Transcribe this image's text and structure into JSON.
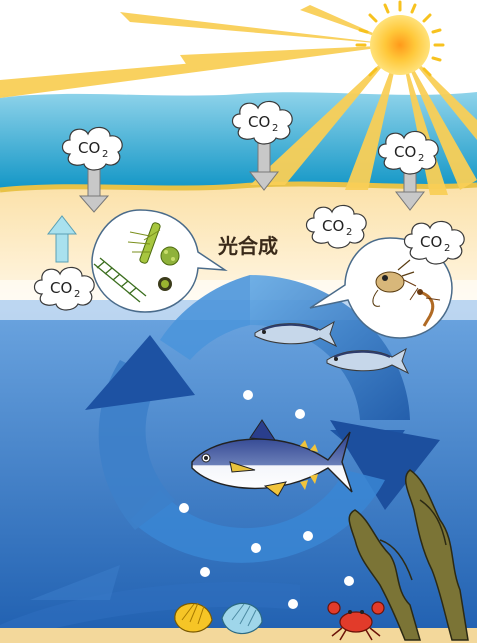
{
  "labels": {
    "photosynthesis": "光合成"
  },
  "co2": {
    "main": "CO",
    "sub": "2"
  },
  "colors": {
    "sky": "#ffffff",
    "sun": "#fbbf24",
    "sea_surface": "#1aa7cf",
    "sand": "#f6d38e",
    "deep_sea": "#1f5fb0",
    "cycle_arrow": "#2f76c8",
    "seaweed": "#7b7436"
  }
}
